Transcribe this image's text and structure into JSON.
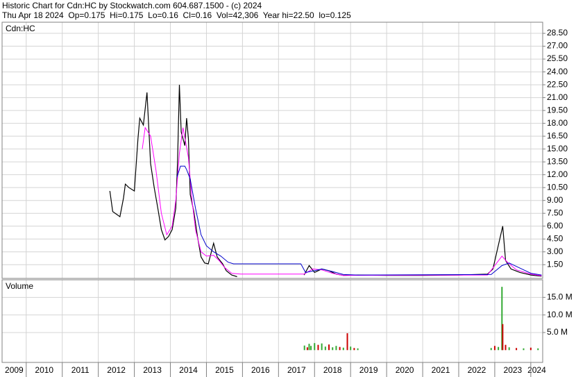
{
  "chart_data": [
    {
      "type": "line",
      "title": "Historic Chart for Cdn:HC by Stockwatch.com 604.687.1500 - (c) 2024",
      "subtitle": "Thu Apr 18 2024  Op=0.175  Hi=0.175  Lo=0.16  Cl=0.16  Vol=42,306  Year hi=22.50  lo=0.125",
      "label": "Cdn:HC",
      "xlim": [
        2009.33,
        2024.33
      ],
      "xticks": [
        2009,
        2010,
        2011,
        2012,
        2013,
        2014,
        2015,
        2016,
        2017,
        2018,
        2019,
        2020,
        2021,
        2022,
        2023,
        2024
      ],
      "ylim": [
        -0.1,
        29.8
      ],
      "yticks": [
        {
          "value": 1.5,
          "label": "1.50"
        },
        {
          "value": 3,
          "label": "3.00"
        },
        {
          "value": 4.5,
          "label": "4.50"
        },
        {
          "value": 6,
          "label": "6.00"
        },
        {
          "value": 7.5,
          "label": "7.50"
        },
        {
          "value": 9,
          "label": "9.00"
        },
        {
          "value": 10.5,
          "label": "10.50"
        },
        {
          "value": 12,
          "label": "12.00"
        },
        {
          "value": 13.5,
          "label": "13.50"
        },
        {
          "value": 15,
          "label": "15.00"
        },
        {
          "value": 16.5,
          "label": "16.50"
        },
        {
          "value": 18,
          "label": "18.00"
        },
        {
          "value": 19.5,
          "label": "19.50"
        },
        {
          "value": 21,
          "label": "21.00"
        },
        {
          "value": 22.5,
          "label": "22.50"
        },
        {
          "value": 24,
          "label": "24.00"
        },
        {
          "value": 25.5,
          "label": "25.50"
        },
        {
          "value": 27,
          "label": "27.00"
        },
        {
          "value": 28.5,
          "label": "28.50"
        }
      ],
      "grid": true,
      "series": [
        {
          "color": "#000000",
          "x": [
            2012.32,
            2012.4,
            2012.5,
            2012.6,
            2012.7,
            2012.75,
            2012.85,
            2013.0,
            2013.1,
            2013.15,
            2013.25,
            2013.35,
            2013.45,
            2013.55,
            2013.65,
            2013.75,
            2013.85,
            2013.95,
            2014.05,
            2014.15,
            2014.2,
            2014.25,
            2014.3,
            2014.4,
            2014.45,
            2014.5,
            2014.55,
            2014.65,
            2014.75,
            2014.85,
            2014.95,
            2015.05,
            2015.2,
            2015.3,
            2015.45,
            2015.55,
            2015.7,
            2015.85,
            2016.5,
            2017.71,
            2017.85,
            2018.0,
            2018.2,
            2018.4,
            2018.6,
            2018.8,
            2019.2,
            2020.0,
            2021.0,
            2022.0,
            2022.8,
            2022.95,
            2023.22,
            2023.3,
            2023.45,
            2023.7,
            2024.0,
            2024.3
          ],
          "values": [
            10.1,
            7.7,
            7.4,
            7.1,
            9.3,
            10.9,
            10.5,
            10.1,
            16.2,
            18.6,
            17.8,
            21.6,
            13.3,
            10.5,
            8.1,
            5.6,
            4.4,
            4.8,
            5.6,
            8.1,
            13.7,
            22.5,
            17,
            15.4,
            18.6,
            16.2,
            9.7,
            7.7,
            4.8,
            2.4,
            1.7,
            1.6,
            4.0,
            2.4,
            1.6,
            0.8,
            0.3,
            0.1,
            null,
            0.3,
            1.4,
            0.6,
            1.0,
            0.8,
            0.4,
            0.25,
            0.3,
            0.25,
            0.25,
            0.3,
            0.4,
            1.0,
            6.0,
            2.0,
            1.0,
            0.6,
            0.3,
            0.16
          ]
        },
        {
          "color": "#ff00ff",
          "x": [
            2013.22,
            2013.3,
            2013.45,
            2013.6,
            2013.75,
            2013.9,
            2014.05,
            2014.15,
            2014.25,
            2014.35,
            2014.5,
            2014.6,
            2014.7,
            2014.85,
            2015.0,
            2015.2,
            2015.35,
            2015.5,
            2015.7,
            2015.95,
            2017.71,
            2017.95,
            2018.2,
            2018.5,
            2018.8,
            2022.8,
            2023.2,
            2023.35,
            2023.6,
            2024.0,
            2024.3
          ],
          "values": [
            15,
            17.5,
            16.5,
            12.5,
            7.5,
            5,
            6,
            9,
            14.5,
            17.5,
            14,
            9,
            5.5,
            3,
            2.5,
            2.6,
            2,
            1.2,
            0.5,
            0.4,
            0.4,
            1.0,
            0.9,
            0.5,
            0.25,
            0.3,
            2.5,
            1.8,
            0.9,
            0.4,
            0.2
          ]
        },
        {
          "color": "#0000cc",
          "x": [
            2014.18,
            2014.28,
            2014.4,
            2014.45,
            2014.55,
            2014.7,
            2014.85,
            2015.0,
            2015.2,
            2015.4,
            2015.6,
            2015.75,
            2017.62,
            2017.75,
            2018.0,
            2018.2,
            2018.5,
            2018.8,
            2019.2,
            2022.9,
            2023.2,
            2023.4,
            2023.7,
            2024.0,
            2024.3
          ],
          "values": [
            11.7,
            13.0,
            13.0,
            12.6,
            11.5,
            8.0,
            5.0,
            3.7,
            3.0,
            2.5,
            1.8,
            1.6,
            1.6,
            0.6,
            0.8,
            1.0,
            0.7,
            0.35,
            0.3,
            0.35,
            1.4,
            1.7,
            1.1,
            0.5,
            0.3
          ]
        }
      ]
    },
    {
      "type": "bar",
      "title": "Volume",
      "xlim": [
        2009.33,
        2024.33
      ],
      "xticks": [
        2009,
        2010,
        2011,
        2012,
        2013,
        2014,
        2015,
        2016,
        2017,
        2018,
        2019,
        2020,
        2021,
        2022,
        2023,
        2024
      ],
      "ylim": [
        -3500000,
        20000000
      ],
      "yticks": [
        {
          "value": 5000000,
          "label": "5.0 M"
        },
        {
          "value": 10000000,
          "label": "10.0 M"
        },
        {
          "value": 15000000,
          "label": "15.0 M"
        }
      ],
      "grid": true,
      "x": [
        2017.72,
        2017.8,
        2017.85,
        2017.9,
        2018.0,
        2018.1,
        2018.2,
        2018.3,
        2018.4,
        2018.5,
        2018.6,
        2018.7,
        2018.8,
        2018.91,
        2019.0,
        2019.1,
        2019.2,
        2022.9,
        2023.0,
        2023.1,
        2023.2,
        2023.22,
        2023.3,
        2023.4,
        2023.6,
        2023.8,
        2024.0,
        2024.2
      ],
      "values": [
        1300000,
        800000,
        1800000,
        1200000,
        2000000,
        1500000,
        1900000,
        1000000,
        1600000,
        800000,
        1200000,
        900000,
        700000,
        4800000,
        1000000,
        600000,
        500000,
        600000,
        1200000,
        900000,
        18000000,
        7400000,
        1500000,
        800000,
        600000,
        500000,
        700000,
        500000
      ],
      "colors": [
        "#33aa33",
        "#cc0000",
        "#33aa33",
        "#33aa33",
        "#33aa33",
        "#cc0000",
        "#33aa33",
        "#33aa33",
        "#cc0000",
        "#33aa33",
        "#33aa33",
        "#cc0000",
        "#33aa33",
        "#cc0000",
        "#33aa33",
        "#cc0000",
        "#33aa33",
        "#33aa33",
        "#cc0000",
        "#33aa33",
        "#33aa33",
        "#cc0000",
        "#cc0000",
        "#33aa33",
        "#cc0000",
        "#33aa33",
        "#cc0000",
        "#33aa33"
      ]
    }
  ]
}
